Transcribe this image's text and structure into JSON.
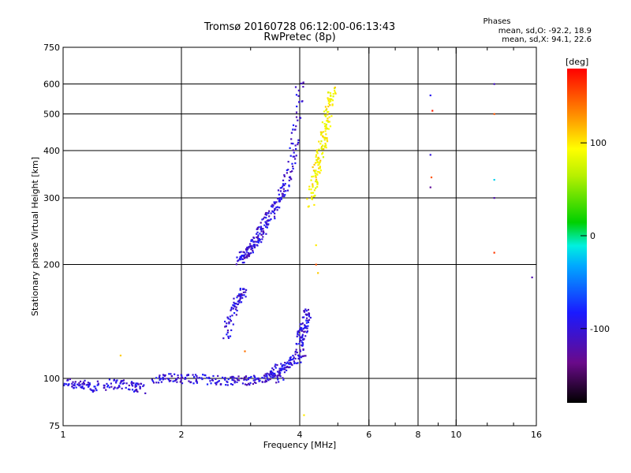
{
  "header": {
    "title_line1": "Tromsø 20160728 06:12:00-06:13:43",
    "title_line2": "RwPretec (8p)",
    "phases_title": "Phases",
    "phases_o": "mean, sd,O: -92.2, 18.9",
    "phases_x": "mean, sd,X: 94.1, 22.6"
  },
  "chart_data": {
    "type": "scatter",
    "xlabel": "Frequency [MHz]",
    "ylabel": "Stationary phase Virtual Height [km]",
    "xscale": "log",
    "yscale": "log",
    "xlim": [
      1,
      16
    ],
    "ylim": [
      75,
      750
    ],
    "x_ticks": [
      1,
      2,
      4,
      6,
      8,
      10,
      16
    ],
    "x_tick_labels": [
      "1",
      "2",
      "4",
      "6",
      "8",
      "10",
      "16"
    ],
    "x_grid": [
      2,
      4,
      6,
      8,
      10
    ],
    "x_minor": [
      3,
      5,
      7,
      9,
      12,
      14
    ],
    "y_ticks": [
      75,
      100,
      200,
      300,
      400,
      500,
      600,
      750
    ],
    "y_tick_labels": [
      "75",
      "100",
      "200",
      "300",
      "400",
      "500",
      "600",
      "750"
    ],
    "y_grid": [
      100,
      200,
      300,
      400,
      500,
      600
    ],
    "grid": true,
    "colorbar": {
      "label": "[deg]",
      "range": [
        -180,
        180
      ],
      "ticks": [
        100,
        0,
        -100
      ],
      "tick_labels": [
        "100",
        "0",
        "-100"
      ]
    },
    "series": [
      {
        "traces": [
          {
            "x": [
              1.0,
              1.1,
              1.2,
              1.35,
              1.5,
              1.6
            ],
            "y": [
              98,
              96,
              95,
              97,
              96,
              94
            ]
          },
          {
            "x": [
              1.7,
              1.9,
              2.1,
              2.4,
              2.7,
              3.0,
              3.3,
              3.6
            ],
            "y": [
              100,
              100,
              100,
              99,
              99,
              99,
              100,
              101
            ]
          },
          {
            "x": [
              2.8,
              2.9,
              3.0,
              3.1,
              3.2,
              3.3,
              3.45,
              3.6,
              3.75,
              3.9,
              4.0
            ],
            "y": [
              205,
              212,
              220,
              232,
              246,
              262,
              280,
              305,
              345,
              430,
              620
            ]
          },
          {
            "x": [
              2.6,
              2.7,
              2.8,
              2.9
            ],
            "y": [
              130,
              150,
              165,
              170
            ]
          },
          {
            "x": [
              3.3,
              3.5,
              3.7,
              3.9,
              4.05
            ],
            "y": [
              102,
              105,
              108,
              112,
              118
            ]
          },
          {
            "x": [
              4.0,
              4.05,
              4.1,
              4.2
            ],
            "y": [
              125,
              130,
              140,
              150
            ]
          }
        ],
        "phase_center": -100,
        "phase_spread": 22
      },
      {
        "traces": [
          {
            "x": [
              4.25,
              4.35,
              4.45,
              4.55,
              4.65,
              4.75,
              4.85
            ],
            "y": [
              290,
              330,
              370,
              410,
              460,
              520,
              590
            ]
          }
        ],
        "phase_center": 95,
        "phase_spread": 20
      }
    ],
    "isolated_points": [
      {
        "x": 8.6,
        "y": 560,
        "phase": -90
      },
      {
        "x": 8.7,
        "y": 510,
        "phase": 170
      },
      {
        "x": 8.6,
        "y": 390,
        "phase": -100
      },
      {
        "x": 8.65,
        "y": 340,
        "phase": 150
      },
      {
        "x": 8.6,
        "y": 320,
        "phase": -130
      },
      {
        "x": 12.5,
        "y": 600,
        "phase": -110
      },
      {
        "x": 12.5,
        "y": 500,
        "phase": 150
      },
      {
        "x": 12.5,
        "y": 335,
        "phase": -20
      },
      {
        "x": 12.5,
        "y": 300,
        "phase": -120
      },
      {
        "x": 12.5,
        "y": 215,
        "phase": 160
      },
      {
        "x": 15.6,
        "y": 185,
        "phase": -120
      },
      {
        "x": 4.4,
        "y": 225,
        "phase": 100
      },
      {
        "x": 4.45,
        "y": 190,
        "phase": 110
      },
      {
        "x": 4.4,
        "y": 200,
        "phase": 150
      },
      {
        "x": 1.4,
        "y": 115,
        "phase": 110
      },
      {
        "x": 2.9,
        "y": 118,
        "phase": 140
      },
      {
        "x": 4.1,
        "y": 80,
        "phase": 100
      }
    ]
  }
}
